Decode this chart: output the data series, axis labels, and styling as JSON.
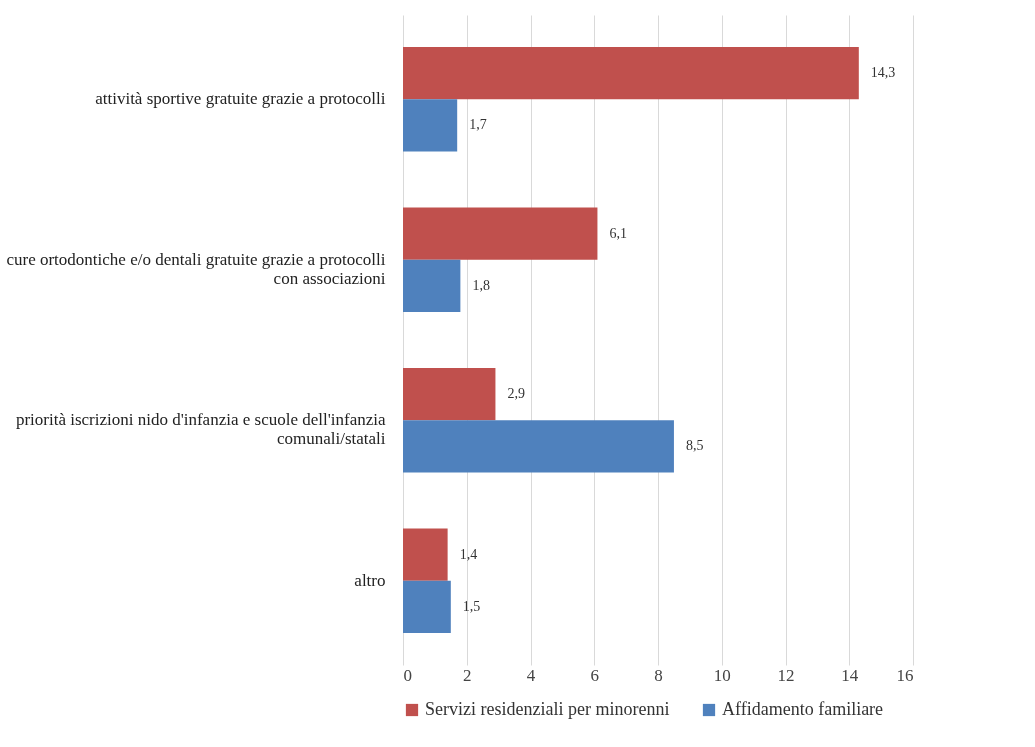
{
  "chart_data": {
    "type": "bar",
    "orientation": "horizontal",
    "categories": [
      "attività sportive gratuite grazie a protocolli",
      "cure ortodontiche e/o dentali gratuite grazie a protocolli con associazioni",
      "priorità iscrizioni nido d'infanzia e scuole dell'infanzia comunali/statali",
      "altro"
    ],
    "series": [
      {
        "name": "Servizi residenziali per minorenni",
        "color": "#c0504d",
        "values": [
          14.3,
          6.1,
          2.9,
          1.4
        ],
        "value_labels": [
          "14,3",
          "6,1",
          "2,9",
          "1,4"
        ]
      },
      {
        "name": "Affidamento familiare",
        "color": "#4f81bd",
        "values": [
          1.7,
          1.8,
          8.5,
          1.5
        ],
        "value_labels": [
          "1,7",
          "1,8",
          "8,5",
          "1,5"
        ]
      }
    ],
    "xlim": [
      0,
      16
    ],
    "xticks": [
      0,
      2,
      4,
      6,
      8,
      10,
      12,
      14,
      16
    ],
    "grid": "x",
    "legend": "bottom"
  }
}
